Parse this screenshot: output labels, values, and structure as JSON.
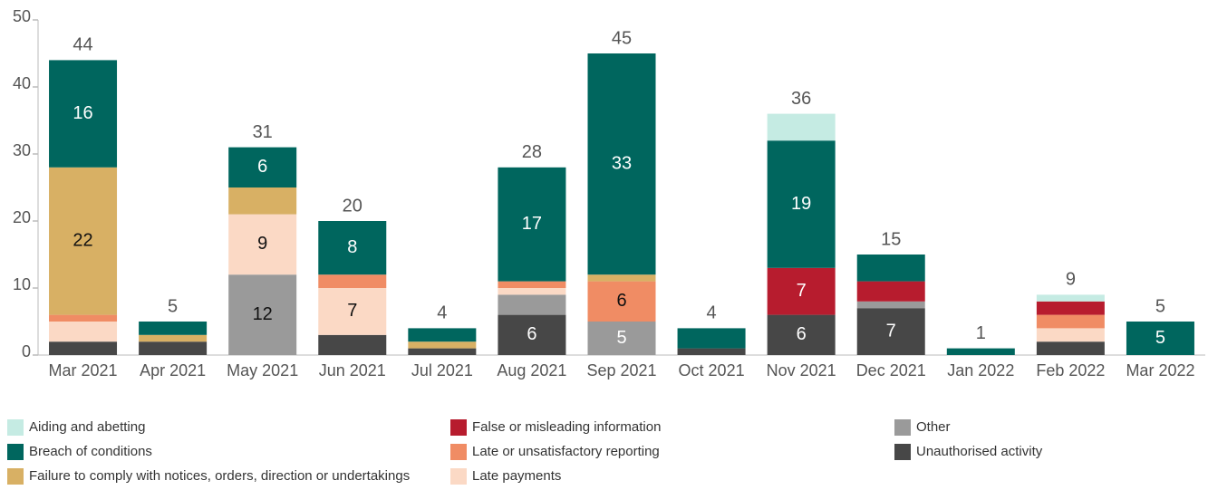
{
  "chart_data": {
    "type": "stacked_bar",
    "categories": [
      "Mar 2021",
      "Apr 2021",
      "May 2021",
      "Jun 2021",
      "Jul 2021",
      "Aug 2021",
      "Sep 2021",
      "Oct 2021",
      "Nov 2021",
      "Dec 2021",
      "Jan 2022",
      "Feb 2022",
      "Mar 2022"
    ],
    "totals": [
      44,
      5,
      31,
      20,
      4,
      28,
      45,
      4,
      36,
      15,
      1,
      9,
      5
    ],
    "series": [
      {
        "name": "Unauthorised activity",
        "color": "#474747",
        "values": [
          2,
          2,
          null,
          3,
          1,
          6,
          null,
          1,
          6,
          7,
          null,
          2,
          null
        ]
      },
      {
        "name": "Other",
        "color": "#9a9a9a",
        "values": [
          null,
          null,
          12,
          null,
          null,
          3,
          5,
          null,
          null,
          1,
          null,
          null,
          null
        ]
      },
      {
        "name": "Late payments",
        "color": "#fbd9c5",
        "values": [
          3,
          null,
          9,
          7,
          null,
          1,
          null,
          null,
          null,
          null,
          null,
          2,
          null
        ]
      },
      {
        "name": "Late or unsatisfactory reporting",
        "color": "#f08c64",
        "values": [
          1,
          null,
          null,
          2,
          null,
          1,
          6,
          null,
          null,
          null,
          null,
          2,
          null
        ]
      },
      {
        "name": "Failure to comply with notices, orders, direction or undertakings",
        "color": "#d8b064",
        "values": [
          22,
          1,
          4,
          null,
          1,
          null,
          1,
          null,
          null,
          null,
          null,
          null,
          null
        ]
      },
      {
        "name": "False or misleading information",
        "color": "#b71c2e",
        "values": [
          null,
          null,
          null,
          null,
          null,
          null,
          null,
          null,
          7,
          3,
          null,
          2,
          null
        ]
      },
      {
        "name": "Breach of conditions",
        "color": "#00665e",
        "values": [
          16,
          2,
          6,
          8,
          2,
          17,
          33,
          3,
          19,
          4,
          1,
          null,
          5
        ]
      },
      {
        "name": "Aiding and abetting",
        "color": "#c5ebe3",
        "values": [
          null,
          null,
          null,
          null,
          null,
          null,
          null,
          null,
          4,
          null,
          null,
          1,
          null
        ]
      }
    ],
    "legend_order": [
      7,
      6,
      4,
      5,
      3,
      2,
      1,
      0
    ],
    "ylim": [
      0,
      50
    ],
    "yticks": [
      0,
      10,
      20,
      30,
      40,
      50
    ]
  }
}
